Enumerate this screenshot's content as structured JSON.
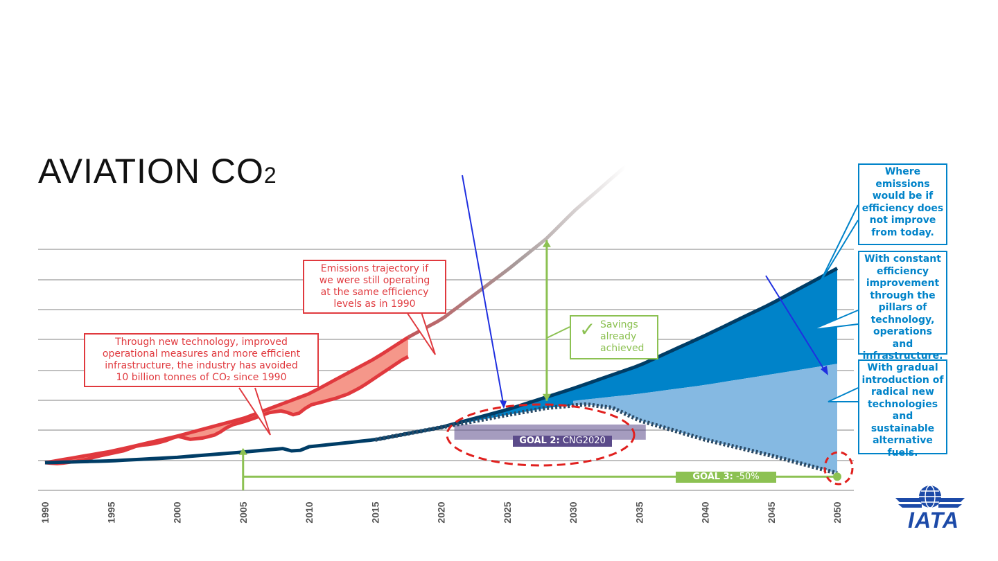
{
  "title": {
    "main": "AVIATION CO",
    "subscript": "2"
  },
  "chart_data": {
    "type": "area",
    "x_range": [
      1990,
      2050
    ],
    "x_ticks": [
      "1990",
      "1995",
      "2000",
      "2005",
      "2010",
      "2015",
      "2020",
      "2025",
      "2030",
      "2035",
      "2040",
      "2045",
      "2050"
    ],
    "series": [
      {
        "key": "trajectory_1990",
        "color": "#e0393e",
        "x": [
          1990,
          1995,
          2000,
          2005,
          2010,
          2015,
          2017.5,
          2020,
          2025,
          2028,
          2030,
          2034
        ],
        "y": [
          1.0,
          1.32,
          1.75,
          2.25,
          2.95,
          3.95,
          4.55,
          5.05,
          6.45,
          7.35,
          8.1,
          9.4
        ]
      },
      {
        "key": "actual",
        "color": "#e84c4c",
        "x": [
          1990,
          1991,
          1992,
          1993,
          1994,
          1995,
          1996,
          1997,
          1998,
          1999,
          2000,
          2001,
          2002,
          2003,
          2004,
          2005,
          2006,
          2007,
          2008,
          2009,
          2010,
          2011,
          2012,
          2013,
          2014,
          2015,
          2016,
          2017,
          2017.5
        ],
        "y": [
          1.0,
          0.97,
          1.02,
          1.08,
          1.18,
          1.26,
          1.34,
          1.48,
          1.52,
          1.6,
          1.75,
          1.66,
          1.7,
          1.8,
          2.05,
          2.15,
          2.28,
          2.42,
          2.47,
          2.33,
          2.62,
          2.72,
          2.82,
          2.95,
          3.15,
          3.4,
          3.65,
          3.9,
          4.0
        ]
      },
      {
        "key": "no_improvement",
        "color": "#003d66",
        "x": [
          1990,
          1995,
          2000,
          2005,
          2008,
          2009,
          2010,
          2015,
          2020,
          2025,
          2030,
          2035,
          2040,
          2045,
          2050
        ],
        "y": [
          1.0,
          1.05,
          1.15,
          1.3,
          1.4,
          1.3,
          1.45,
          1.65,
          2.0,
          2.5,
          3.1,
          3.75,
          4.6,
          5.5,
          6.5
        ]
      },
      {
        "key": "constant_efficiency",
        "color": "#0083c9",
        "x": [
          2030,
          2035,
          2040,
          2045,
          2050
        ],
        "y": [
          2.75,
          2.95,
          3.2,
          3.5,
          3.8
        ]
      },
      {
        "key": "cng2020_then_decline",
        "color": "#2a4a66",
        "x": [
          2015,
          2020,
          2025,
          2028,
          2031,
          2033,
          2035,
          2040,
          2045,
          2050
        ],
        "y": [
          1.65,
          2.0,
          2.35,
          2.55,
          2.65,
          2.55,
          2.2,
          1.65,
          1.2,
          0.7
        ]
      }
    ],
    "goal_3_level": 0.7,
    "labels": {
      "goal2": "GOAL 2:",
      "goal2_value": "CNG2020",
      "goal3": "GOAL 3:",
      "goal3_value": "-50%"
    }
  },
  "callouts": {
    "trajectory": [
      "Emissions trajectory if",
      "we were still operating",
      "at the same efficiency",
      "levels as in 1990"
    ],
    "avoided": [
      "Through new technology, improved",
      "operational measures and more efficient",
      "infrastructure, the industry has avoided",
      "10 billion tonnes of CO₂ since 1990"
    ],
    "savings": [
      "Savings",
      "already",
      "achieved"
    ],
    "no_improve": [
      "Where",
      "emissions",
      "would be if",
      "efficiency does",
      "not improve",
      "from today."
    ],
    "constant": [
      "With constant",
      "efficiency",
      "improvement",
      "through the",
      "pillars of",
      "technology,",
      "operations and",
      "infrastructure."
    ],
    "gradual": [
      "With gradual",
      "introduction of",
      "radical new",
      "technologies",
      "and sustainable",
      "alternative",
      "fuels."
    ]
  },
  "logo": {
    "text": "IATA",
    "color": "#1c4aa8"
  },
  "colors": {
    "red": "#e0393e",
    "salmon": "#f5978a",
    "dark_blue": "#003d66",
    "mid_blue": "#0083c9",
    "light_blue": "#85b9e2",
    "green": "#8cc152",
    "purple": "#5b4b8a",
    "grid": "#9a9a9a"
  }
}
